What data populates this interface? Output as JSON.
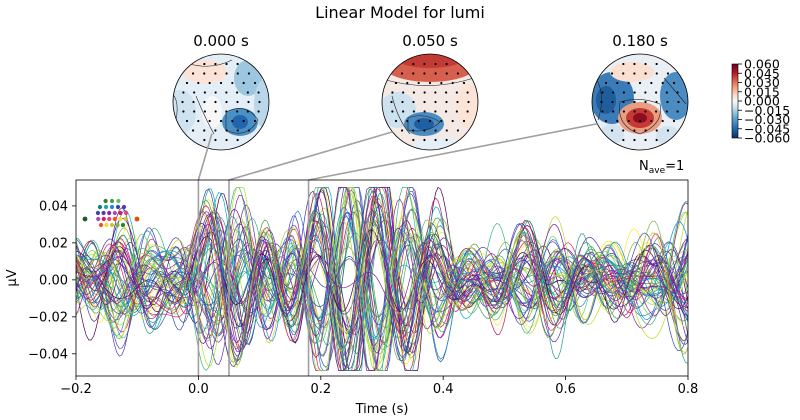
{
  "title": "Linear Model for lumi",
  "chart_data": {
    "type": "line",
    "title": "Linear Model for lumi",
    "xlabel": "Time (s)",
    "ylabel": "µV",
    "xlim": [
      -0.2,
      0.8
    ],
    "ylim": [
      -0.052,
      0.054
    ],
    "x_ticks": [
      -0.2,
      0.0,
      0.2,
      0.4,
      0.6,
      0.8
    ],
    "x_tick_labels": [
      "−0.2",
      "0.0",
      "0.2",
      "0.4",
      "0.6",
      "0.8"
    ],
    "y_ticks": [
      -0.04,
      -0.02,
      0.0,
      0.02,
      0.04
    ],
    "y_tick_labels": [
      "−0.04",
      "−0.02",
      "0.00",
      "0.02",
      "0.04"
    ],
    "nave_label": "N",
    "nave_sub": "ave",
    "nave_value": "=1",
    "n_channels": 60,
    "grid": false,
    "topomap_times": [
      0.0,
      0.05,
      0.18
    ],
    "topomap_labels": [
      "0.000 s",
      "0.050 s",
      "0.180 s"
    ],
    "colorbar": {
      "colormap": "RdBu_r",
      "range": [
        -0.06,
        0.06
      ],
      "ticks": [
        "0.060",
        "0.045",
        "0.030",
        "0.015",
        "0.000",
        "−0.015",
        "−0.030",
        "−0.045",
        "−0.060"
      ]
    },
    "series_summary": "60 sensor traces, amplitudes roughly within ±0.05 µV, oscillating at ~8-9 Hz"
  },
  "colors": {
    "cold": "#2166ac",
    "hot": "#b2182b",
    "vline": "#a0a0a0"
  }
}
